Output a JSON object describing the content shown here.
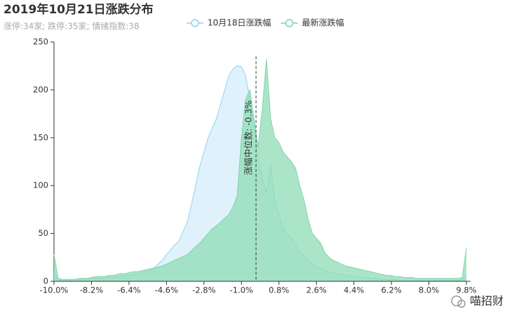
{
  "chart_data": {
    "type": "area",
    "title": "2019年10月21日涨跌分布",
    "subtitle": "涨停:34家; 跌停:35家; 情绪指数:38",
    "legend": "top",
    "x": [
      -10.0,
      -9.8,
      -9.6,
      -9.4,
      -9.2,
      -9.0,
      -8.8,
      -8.6,
      -8.4,
      -8.2,
      -8.0,
      -7.8,
      -7.6,
      -7.4,
      -7.2,
      -7.0,
      -6.8,
      -6.6,
      -6.4,
      -6.2,
      -6.0,
      -5.8,
      -5.6,
      -5.4,
      -5.2,
      -5.0,
      -4.8,
      -4.6,
      -4.4,
      -4.2,
      -4.0,
      -3.8,
      -3.6,
      -3.4,
      -3.2,
      -3.0,
      -2.8,
      -2.6,
      -2.4,
      -2.2,
      -2.0,
      -1.8,
      -1.6,
      -1.4,
      -1.2,
      -1.0,
      -0.8,
      -0.6,
      -0.4,
      -0.2,
      0,
      0.2,
      0.4,
      0.6,
      0.8,
      1.0,
      1.2,
      1.4,
      1.6,
      1.8,
      2.0,
      2.2,
      2.4,
      2.6,
      2.8,
      3.0,
      3.2,
      3.4,
      3.6,
      3.8,
      4.0,
      4.2,
      4.4,
      4.6,
      4.8,
      5.0,
      5.2,
      5.4,
      5.6,
      5.8,
      6.0,
      6.2,
      6.4,
      6.6,
      6.8,
      7.0,
      7.2,
      7.4,
      7.6,
      7.8,
      8.0,
      8.2,
      8.4,
      8.6,
      8.8,
      9.0,
      9.2,
      9.4,
      9.6,
      9.8
    ],
    "series": [
      {
        "name": "10月18日涨跌幅",
        "color": "#8fd3f0",
        "fill": "#dcf1fb",
        "values": [
          8,
          1,
          1,
          1,
          1,
          2,
          2,
          2,
          2,
          3,
          3,
          3,
          3,
          4,
          4,
          5,
          5,
          6,
          6,
          7,
          8,
          9,
          10,
          12,
          14,
          18,
          22,
          28,
          33,
          38,
          42,
          52,
          62,
          80,
          100,
          120,
          135,
          150,
          160,
          170,
          185,
          200,
          215,
          222,
          225,
          224,
          215,
          190,
          165,
          130,
          108,
          92,
          122,
          85,
          70,
          55,
          50,
          45,
          38,
          30,
          26,
          22,
          18,
          15,
          13,
          12,
          10,
          9,
          8,
          7,
          6,
          6,
          5,
          5,
          4,
          4,
          3,
          3,
          3,
          2,
          2,
          2,
          2,
          1,
          1,
          1,
          1,
          1,
          1,
          1,
          1,
          1,
          1,
          1,
          1,
          1,
          1,
          1,
          2,
          6
        ]
      },
      {
        "name": "最新涨跌幅",
        "color": "#7fd4a8",
        "fill": "#8fdcb4",
        "values": [
          28,
          3,
          2,
          2,
          2,
          2,
          3,
          3,
          3,
          4,
          5,
          5,
          5,
          6,
          6,
          7,
          8,
          8,
          9,
          10,
          10,
          11,
          12,
          13,
          14,
          15,
          16,
          18,
          20,
          22,
          24,
          26,
          28,
          32,
          36,
          40,
          45,
          50,
          55,
          58,
          62,
          66,
          70,
          78,
          90,
          150,
          190,
          200,
          170,
          140,
          180,
          232,
          170,
          150,
          145,
          135,
          130,
          125,
          118,
          100,
          85,
          65,
          50,
          45,
          40,
          30,
          25,
          22,
          20,
          18,
          16,
          15,
          14,
          13,
          12,
          11,
          10,
          9,
          8,
          7,
          6,
          6,
          5,
          5,
          4,
          4,
          4,
          3,
          3,
          3,
          3,
          3,
          3,
          3,
          3,
          3,
          3,
          3,
          4,
          35
        ]
      }
    ],
    "xlim": [
      -10.0,
      9.8
    ],
    "xticks": [
      {
        "value": -10.0,
        "label": "-10.0%"
      },
      {
        "value": -8.2,
        "label": "-8.2%"
      },
      {
        "value": -6.4,
        "label": "-6.4%"
      },
      {
        "value": -4.6,
        "label": "-4.6%"
      },
      {
        "value": -2.8,
        "label": "-2.8%"
      },
      {
        "value": -1.0,
        "label": "-1.0%"
      },
      {
        "value": 0.8,
        "label": "0.8%"
      },
      {
        "value": 2.6,
        "label": "2.6%"
      },
      {
        "value": 4.4,
        "label": "4.4%"
      },
      {
        "value": 6.2,
        "label": "6.2%"
      },
      {
        "value": 8.0,
        "label": "8.0%"
      },
      {
        "value": 9.8,
        "label": "9.8%"
      }
    ],
    "ylim": [
      0,
      250
    ],
    "yticks": [
      0,
      50,
      100,
      150,
      200,
      250
    ],
    "median": {
      "value": -0.3,
      "label": "涨幅中位数: -0.3%"
    },
    "watermark": "喵招财"
  }
}
